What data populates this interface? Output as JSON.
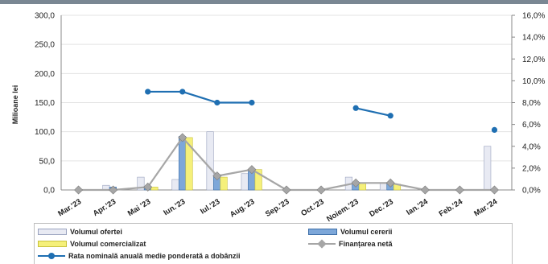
{
  "chart_data": {
    "type": "bar",
    "title": "",
    "ylabel": "Milioane lei",
    "categories": [
      "Mar.'23",
      "Apr.'23",
      "Mai '23",
      "Iun.'23",
      "Iul.'23",
      "Aug.'23",
      "Sep.'23",
      "Oct.'23",
      "Noiem.'23",
      "Dec.'23",
      "Ian.'24",
      "Feb.'24",
      "Mar.'24"
    ],
    "y_ticks": [
      "0,0",
      "50,0",
      "100,0",
      "150,0",
      "200,0",
      "250,0",
      "300,0"
    ],
    "y2_ticks": [
      "0,0%",
      "2,0%",
      "4,0%",
      "6,0%",
      "8,0%",
      "10,0%",
      "12,0%",
      "14,0%",
      "16,0%"
    ],
    "ylim": [
      0,
      300
    ],
    "y2lim": [
      0,
      16
    ],
    "series": [
      {
        "name": "Volumul ofertei",
        "kind": "bar",
        "color": "#e8eaf3",
        "values": [
          0,
          8,
          22,
          18,
          100,
          28,
          0,
          0,
          22,
          12,
          0,
          0,
          75
        ]
      },
      {
        "name": "Volumul cererii",
        "kind": "bar",
        "color": "#7da7d9",
        "values": [
          0,
          5,
          5,
          92,
          24,
          35,
          0,
          0,
          12,
          10,
          0,
          0,
          0
        ]
      },
      {
        "name": "Volumul comercializat",
        "kind": "bar",
        "color": "#f5f07a",
        "values": [
          0,
          0,
          5,
          90,
          22,
          35,
          0,
          0,
          12,
          10,
          0,
          0,
          0
        ]
      },
      {
        "name": "Finanțarea netă",
        "kind": "line",
        "color": "#a6a6a6",
        "axis": "y",
        "values": [
          0,
          0,
          5,
          90,
          24,
          35,
          0,
          0,
          12,
          12,
          0,
          0,
          0
        ]
      },
      {
        "name": "Rata nominală anuală medie ponderată a dobânzii",
        "kind": "line",
        "color": "#1f6fb2",
        "axis": "y2",
        "values": [
          null,
          null,
          9.0,
          9.0,
          8.0,
          8.0,
          null,
          null,
          7.5,
          6.8,
          null,
          null,
          5.5
        ]
      }
    ],
    "grid": true,
    "legend_position": "bottom"
  }
}
